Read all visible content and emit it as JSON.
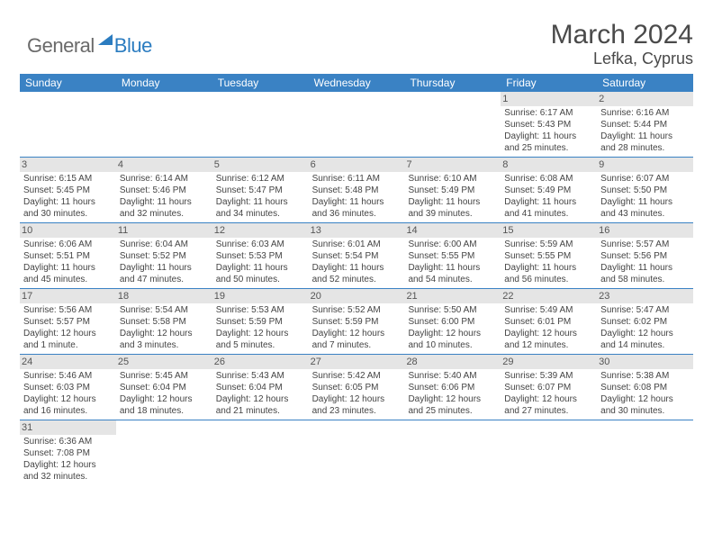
{
  "logo": {
    "text_general": "General",
    "text_blue": "Blue",
    "icon_fill": "#2b7cc0"
  },
  "title": "March 2024",
  "location": "Lefka, Cyprus",
  "colors": {
    "header_bg": "#3a82c4",
    "header_text": "#ffffff",
    "daynum_bg": "#e5e5e5",
    "row_border": "#3a82c4",
    "body_text": "#444444",
    "title_text": "#4a4a4a"
  },
  "day_headers": [
    "Sunday",
    "Monday",
    "Tuesday",
    "Wednesday",
    "Thursday",
    "Friday",
    "Saturday"
  ],
  "weeks": [
    [
      {
        "empty": true
      },
      {
        "empty": true
      },
      {
        "empty": true
      },
      {
        "empty": true
      },
      {
        "empty": true
      },
      {
        "num": "1",
        "sunrise": "Sunrise: 6:17 AM",
        "sunset": "Sunset: 5:43 PM",
        "daylight1": "Daylight: 11 hours",
        "daylight2": "and 25 minutes."
      },
      {
        "num": "2",
        "sunrise": "Sunrise: 6:16 AM",
        "sunset": "Sunset: 5:44 PM",
        "daylight1": "Daylight: 11 hours",
        "daylight2": "and 28 minutes."
      }
    ],
    [
      {
        "num": "3",
        "sunrise": "Sunrise: 6:15 AM",
        "sunset": "Sunset: 5:45 PM",
        "daylight1": "Daylight: 11 hours",
        "daylight2": "and 30 minutes."
      },
      {
        "num": "4",
        "sunrise": "Sunrise: 6:14 AM",
        "sunset": "Sunset: 5:46 PM",
        "daylight1": "Daylight: 11 hours",
        "daylight2": "and 32 minutes."
      },
      {
        "num": "5",
        "sunrise": "Sunrise: 6:12 AM",
        "sunset": "Sunset: 5:47 PM",
        "daylight1": "Daylight: 11 hours",
        "daylight2": "and 34 minutes."
      },
      {
        "num": "6",
        "sunrise": "Sunrise: 6:11 AM",
        "sunset": "Sunset: 5:48 PM",
        "daylight1": "Daylight: 11 hours",
        "daylight2": "and 36 minutes."
      },
      {
        "num": "7",
        "sunrise": "Sunrise: 6:10 AM",
        "sunset": "Sunset: 5:49 PM",
        "daylight1": "Daylight: 11 hours",
        "daylight2": "and 39 minutes."
      },
      {
        "num": "8",
        "sunrise": "Sunrise: 6:08 AM",
        "sunset": "Sunset: 5:49 PM",
        "daylight1": "Daylight: 11 hours",
        "daylight2": "and 41 minutes."
      },
      {
        "num": "9",
        "sunrise": "Sunrise: 6:07 AM",
        "sunset": "Sunset: 5:50 PM",
        "daylight1": "Daylight: 11 hours",
        "daylight2": "and 43 minutes."
      }
    ],
    [
      {
        "num": "10",
        "sunrise": "Sunrise: 6:06 AM",
        "sunset": "Sunset: 5:51 PM",
        "daylight1": "Daylight: 11 hours",
        "daylight2": "and 45 minutes."
      },
      {
        "num": "11",
        "sunrise": "Sunrise: 6:04 AM",
        "sunset": "Sunset: 5:52 PM",
        "daylight1": "Daylight: 11 hours",
        "daylight2": "and 47 minutes."
      },
      {
        "num": "12",
        "sunrise": "Sunrise: 6:03 AM",
        "sunset": "Sunset: 5:53 PM",
        "daylight1": "Daylight: 11 hours",
        "daylight2": "and 50 minutes."
      },
      {
        "num": "13",
        "sunrise": "Sunrise: 6:01 AM",
        "sunset": "Sunset: 5:54 PM",
        "daylight1": "Daylight: 11 hours",
        "daylight2": "and 52 minutes."
      },
      {
        "num": "14",
        "sunrise": "Sunrise: 6:00 AM",
        "sunset": "Sunset: 5:55 PM",
        "daylight1": "Daylight: 11 hours",
        "daylight2": "and 54 minutes."
      },
      {
        "num": "15",
        "sunrise": "Sunrise: 5:59 AM",
        "sunset": "Sunset: 5:55 PM",
        "daylight1": "Daylight: 11 hours",
        "daylight2": "and 56 minutes."
      },
      {
        "num": "16",
        "sunrise": "Sunrise: 5:57 AM",
        "sunset": "Sunset: 5:56 PM",
        "daylight1": "Daylight: 11 hours",
        "daylight2": "and 58 minutes."
      }
    ],
    [
      {
        "num": "17",
        "sunrise": "Sunrise: 5:56 AM",
        "sunset": "Sunset: 5:57 PM",
        "daylight1": "Daylight: 12 hours",
        "daylight2": "and 1 minute."
      },
      {
        "num": "18",
        "sunrise": "Sunrise: 5:54 AM",
        "sunset": "Sunset: 5:58 PM",
        "daylight1": "Daylight: 12 hours",
        "daylight2": "and 3 minutes."
      },
      {
        "num": "19",
        "sunrise": "Sunrise: 5:53 AM",
        "sunset": "Sunset: 5:59 PM",
        "daylight1": "Daylight: 12 hours",
        "daylight2": "and 5 minutes."
      },
      {
        "num": "20",
        "sunrise": "Sunrise: 5:52 AM",
        "sunset": "Sunset: 5:59 PM",
        "daylight1": "Daylight: 12 hours",
        "daylight2": "and 7 minutes."
      },
      {
        "num": "21",
        "sunrise": "Sunrise: 5:50 AM",
        "sunset": "Sunset: 6:00 PM",
        "daylight1": "Daylight: 12 hours",
        "daylight2": "and 10 minutes."
      },
      {
        "num": "22",
        "sunrise": "Sunrise: 5:49 AM",
        "sunset": "Sunset: 6:01 PM",
        "daylight1": "Daylight: 12 hours",
        "daylight2": "and 12 minutes."
      },
      {
        "num": "23",
        "sunrise": "Sunrise: 5:47 AM",
        "sunset": "Sunset: 6:02 PM",
        "daylight1": "Daylight: 12 hours",
        "daylight2": "and 14 minutes."
      }
    ],
    [
      {
        "num": "24",
        "sunrise": "Sunrise: 5:46 AM",
        "sunset": "Sunset: 6:03 PM",
        "daylight1": "Daylight: 12 hours",
        "daylight2": "and 16 minutes."
      },
      {
        "num": "25",
        "sunrise": "Sunrise: 5:45 AM",
        "sunset": "Sunset: 6:04 PM",
        "daylight1": "Daylight: 12 hours",
        "daylight2": "and 18 minutes."
      },
      {
        "num": "26",
        "sunrise": "Sunrise: 5:43 AM",
        "sunset": "Sunset: 6:04 PM",
        "daylight1": "Daylight: 12 hours",
        "daylight2": "and 21 minutes."
      },
      {
        "num": "27",
        "sunrise": "Sunrise: 5:42 AM",
        "sunset": "Sunset: 6:05 PM",
        "daylight1": "Daylight: 12 hours",
        "daylight2": "and 23 minutes."
      },
      {
        "num": "28",
        "sunrise": "Sunrise: 5:40 AM",
        "sunset": "Sunset: 6:06 PM",
        "daylight1": "Daylight: 12 hours",
        "daylight2": "and 25 minutes."
      },
      {
        "num": "29",
        "sunrise": "Sunrise: 5:39 AM",
        "sunset": "Sunset: 6:07 PM",
        "daylight1": "Daylight: 12 hours",
        "daylight2": "and 27 minutes."
      },
      {
        "num": "30",
        "sunrise": "Sunrise: 5:38 AM",
        "sunset": "Sunset: 6:08 PM",
        "daylight1": "Daylight: 12 hours",
        "daylight2": "and 30 minutes."
      }
    ],
    [
      {
        "num": "31",
        "sunrise": "Sunrise: 6:36 AM",
        "sunset": "Sunset: 7:08 PM",
        "daylight1": "Daylight: 12 hours",
        "daylight2": "and 32 minutes."
      },
      {
        "empty": true
      },
      {
        "empty": true
      },
      {
        "empty": true
      },
      {
        "empty": true
      },
      {
        "empty": true
      },
      {
        "empty": true
      }
    ]
  ]
}
